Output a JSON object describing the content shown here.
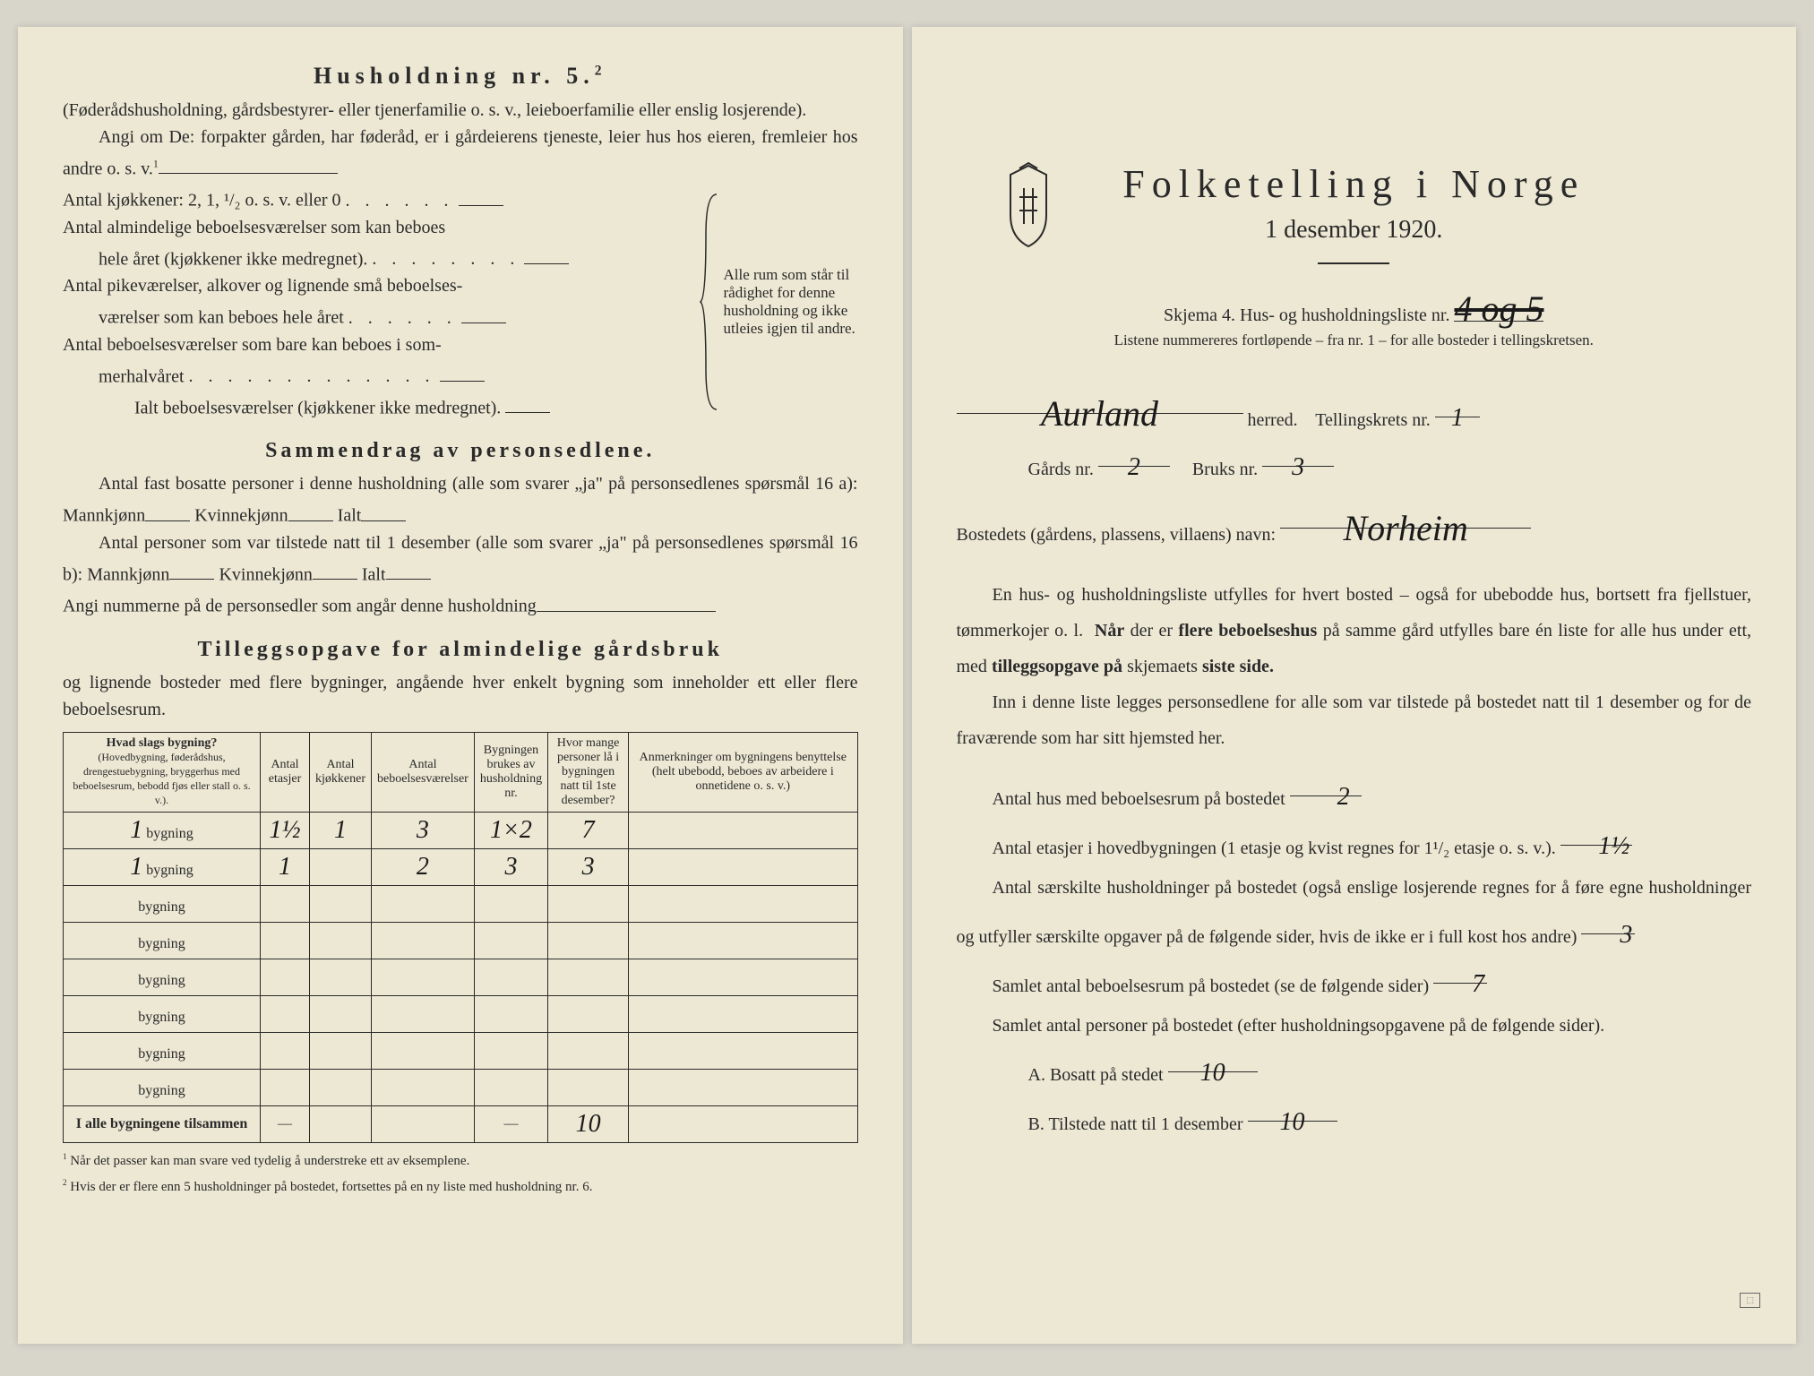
{
  "left": {
    "husholdning_title": "Husholdning nr. 5.",
    "husholdning_sup": "2",
    "husholdning_desc": "(Føderådshusholdning, gårdsbestyrer- eller tjenerfamilie o. s. v., leieboerfamilie eller enslig losjerende).",
    "angi_om": "Angi om De: forpakter gården, har føderåd, er i gårdeierens tjeneste, leier hus hos eieren, fremleier hos andre o. s. v.",
    "angi_sup": "1",
    "room_lines": {
      "l1": "Antal kjøkkener: 2, 1, ¹/₂ o. s. v. eller 0",
      "l2a": "Antal almindelige beboelsesværelser som kan beboes",
      "l2b": "hele året (kjøkkener ikke medregnet).",
      "l3a": "Antal pikeværelser, alkover og lignende små beboelses-",
      "l3b": "værelser som kan beboes hele året",
      "l4a": "Antal beboelsesværelser som bare kan beboes i som-",
      "l4b": "merhalvåret",
      "l5": "Ialt beboelsesværelser (kjøkkener ikke medregnet).",
      "brace_text": "Alle rum som står til rådighet for denne husholdning og ikke utleies igjen til andre."
    },
    "sammendrag_title": "Sammendrag av personsedlene.",
    "sammendrag_l1": "Antal fast bosatte personer i denne husholdning (alle som svarer „ja\" på personsedlenes spørsmål 16 a): Mannkjønn",
    "sammendrag_l1b": "Kvinnekjønn",
    "sammendrag_l1c": "Ialt",
    "sammendrag_l2": "Antal personer som var tilstede natt til 1 desember (alle som svarer „ja\" på personsedlenes spørsmål 16 b): Mannkjønn",
    "sammendrag_l2b": "Kvinnekjønn",
    "sammendrag_l2c": "Ialt",
    "sammendrag_l3": "Angi nummerne på de personsedler som angår denne husholdning",
    "tillegg_title": "Tilleggsopgave for almindelige gårdsbruk",
    "tillegg_desc": "og lignende bosteder med flere bygninger, angående hver enkelt bygning som inneholder ett eller flere beboelsesrum.",
    "table": {
      "headers": {
        "h1": "Hvad slags bygning?",
        "h1_sub": "(Hovedbygning, føderådshus, drengestuebygning, bryggerhus med beboelsesrum, bebodd fjøs eller stall o. s. v.).",
        "h2": "Antal etasjer",
        "h3": "Antal kjøkkener",
        "h4": "Antal beboelsesværelser",
        "h5": "Bygningen brukes av husholdning nr.",
        "h6": "Hvor mange personer lå i bygningen natt til 1ste desember?",
        "h7": "Anmerkninger om bygningens benyttelse (helt ubebodd, beboes av arbeidere i onnetidene o. s. v.)"
      },
      "row_label": "bygning",
      "rows": [
        {
          "n": "1",
          "etasjer": "1½",
          "kjokk": "1",
          "beboel": "3",
          "hush": "1×2",
          "pers": "7",
          "anm": ""
        },
        {
          "n": "1",
          "etasjer": "1",
          "kjokk": "",
          "beboel": "2",
          "hush": "3",
          "pers": "3",
          "anm": ""
        },
        {
          "n": "",
          "etasjer": "",
          "kjokk": "",
          "beboel": "",
          "hush": "",
          "pers": "",
          "anm": ""
        },
        {
          "n": "",
          "etasjer": "",
          "kjokk": "",
          "beboel": "",
          "hush": "",
          "pers": "",
          "anm": ""
        },
        {
          "n": "",
          "etasjer": "",
          "kjokk": "",
          "beboel": "",
          "hush": "",
          "pers": "",
          "anm": ""
        },
        {
          "n": "",
          "etasjer": "",
          "kjokk": "",
          "beboel": "",
          "hush": "",
          "pers": "",
          "anm": ""
        },
        {
          "n": "",
          "etasjer": "",
          "kjokk": "",
          "beboel": "",
          "hush": "",
          "pers": "",
          "anm": ""
        },
        {
          "n": "",
          "etasjer": "",
          "kjokk": "",
          "beboel": "",
          "hush": "",
          "pers": "",
          "anm": ""
        }
      ],
      "total_label": "I alle bygningene tilsammen",
      "total_pers": "10"
    },
    "footnote1_n": "1",
    "footnote1": "Når det passer kan man svare ved tydelig å understreke ett av eksemplene.",
    "footnote2_n": "2",
    "footnote2": "Hvis der er flere enn 5 husholdninger på bostedet, fortsettes på en ny liste med husholdning nr. 6."
  },
  "right": {
    "main_title": "Folketelling i Norge",
    "subtitle": "1 desember 1920.",
    "skjema": "Skjema 4.  Hus- og husholdningsliste nr.",
    "liste_nr": "4 og 5",
    "listene": "Listene nummereres fortløpende – fra nr. 1 – for alle bosteder i tellingskretsen.",
    "herred_val": "Aurland",
    "herred_lbl": "herred.",
    "tellingskrets_lbl": "Tellingskrets nr.",
    "tellingskrets_val": "1",
    "gards_lbl": "Gårds nr.",
    "gards_val": "2",
    "bruks_lbl": "Bruks nr.",
    "bruks_val": "3",
    "bosted_lbl": "Bostedets (gårdens, plassens, villaens) navn:",
    "bosted_val": "Norheim",
    "para1": "En hus- og husholdningsliste utfylles for hvert bosted – også for ubebodde hus, bortsett fra fjellstuer, tømmerkojer o. l.  Når der er flere beboelseshus på samme gård utfylles bare én liste for alle hus under ett, med tilleggsopgave på skjemaets siste side.",
    "para2": "Inn i denne liste legges personsedlene for alle som var tilstede på bostedet natt til 1 desember og for de fraværende som har sitt hjemsted her.",
    "q1": "Antal hus med beboelsesrum på bostedet",
    "q1_val": "2",
    "q2": "Antal etasjer i hovedbygningen (1 etasje og kvist regnes for 1¹/₂ etasje o. s. v.).",
    "q2_val": "1½",
    "q3": "Antal særskilte husholdninger på bostedet (også enslige losjerende regnes for å føre egne husholdninger og utfyller særskilte opgaver på de følgende sider, hvis de ikke er i full kost hos andre)",
    "q3_val": "3",
    "q4": "Samlet antal beboelsesrum på bostedet (se de følgende sider)",
    "q4_val": "7",
    "q5": "Samlet antal personer på bostedet (efter husholdningsopgavene på de følgende sider).",
    "qa_lbl": "A.  Bosatt på stedet",
    "qa_val": "10",
    "qb_lbl": "B.  Tilstede natt til 1 desember",
    "qb_val": "10"
  },
  "colors": {
    "paper": "#ede8d4",
    "text": "#2a2a2a",
    "bg": "#d8d6cb"
  }
}
